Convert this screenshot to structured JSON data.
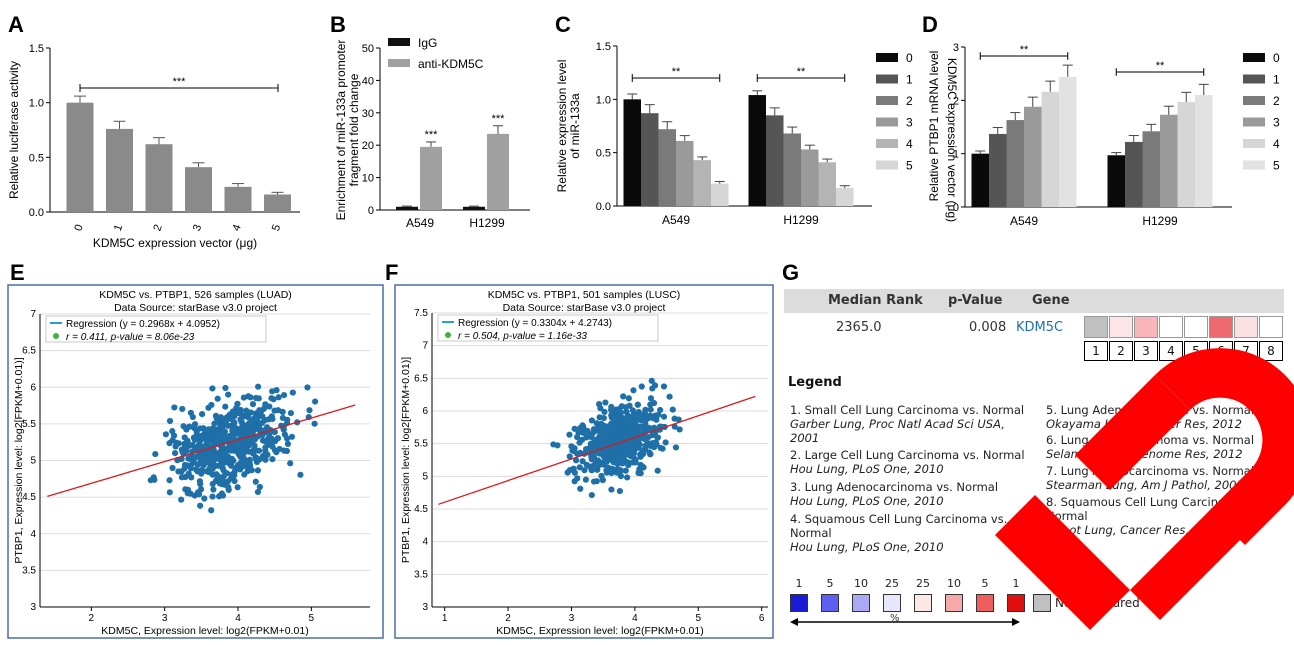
{
  "panel_letters": {
    "A": "A",
    "B": "B",
    "C": "C",
    "D": "D",
    "E": "E",
    "F": "F",
    "G": "G"
  },
  "chart_data": [
    {
      "panel": "A",
      "type": "bar",
      "ylabel": "Relative luciferase activity",
      "xlabel": "KDM5C expression vector (μg)",
      "categories": [
        "0",
        "1",
        "2",
        "3",
        "4",
        "5"
      ],
      "values": [
        1.0,
        0.76,
        0.62,
        0.41,
        0.23,
        0.16
      ],
      "errors": [
        0.06,
        0.07,
        0.06,
        0.04,
        0.03,
        0.02
      ],
      "ylim": [
        0,
        1.5
      ],
      "yticks": [
        "0.0",
        "0.5",
        "1.0",
        "1.5"
      ],
      "significance": "***",
      "color": "#8a8a8a"
    },
    {
      "panel": "B",
      "type": "bar",
      "ylabel": [
        "Enrichment of miR-133a promoter",
        "fragment fold change"
      ],
      "categories": [
        "A549",
        "H1299"
      ],
      "series": [
        {
          "name": "IgG",
          "values": [
            1.0,
            1.0
          ],
          "errors": [
            0.2,
            0.2
          ],
          "color": "#111111"
        },
        {
          "name": "anti-KDM5C",
          "values": [
            19.5,
            23.5
          ],
          "errors": [
            1.5,
            2.5
          ],
          "color": "#a0a0a0"
        }
      ],
      "ylim": [
        0,
        50
      ],
      "yticks": [
        "0",
        "10",
        "20",
        "30",
        "40",
        "50"
      ],
      "significance": [
        "***",
        "***"
      ]
    },
    {
      "panel": "C",
      "type": "bar",
      "ylabel": [
        "Relative expression level",
        "of miR-133a"
      ],
      "legend_title": "KDM5C expression vector (μg)",
      "categories": [
        "A549",
        "H1299"
      ],
      "series": [
        {
          "name": "0",
          "values": [
            1.0,
            1.04
          ],
          "errors": [
            0.05,
            0.04
          ],
          "color": "#0a0a0a"
        },
        {
          "name": "1",
          "values": [
            0.87,
            0.85
          ],
          "errors": [
            0.08,
            0.07
          ],
          "color": "#555555"
        },
        {
          "name": "2",
          "values": [
            0.72,
            0.68
          ],
          "errors": [
            0.07,
            0.06
          ],
          "color": "#7a7a7a"
        },
        {
          "name": "3",
          "values": [
            0.61,
            0.53
          ],
          "errors": [
            0.05,
            0.04
          ],
          "color": "#9a9a9a"
        },
        {
          "name": "4",
          "values": [
            0.43,
            0.41
          ],
          "errors": [
            0.03,
            0.03
          ],
          "color": "#b4b4b4"
        },
        {
          "name": "5",
          "values": [
            0.21,
            0.17
          ],
          "errors": [
            0.02,
            0.02
          ],
          "color": "#d6d6d6"
        }
      ],
      "ylim": [
        0,
        1.5
      ],
      "yticks": [
        "0.0",
        "0.5",
        "1.0",
        "1.5"
      ],
      "significance": [
        "**",
        "**"
      ]
    },
    {
      "panel": "D",
      "type": "bar",
      "ylabel": "Relative PTBP1 mRNA level",
      "legend_title": "KDM5C expression vector (μg)",
      "categories": [
        "A549",
        "H1299"
      ],
      "series": [
        {
          "name": "0",
          "values": [
            1.0,
            0.97
          ],
          "errors": [
            0.05,
            0.05
          ],
          "color": "#0a0a0a"
        },
        {
          "name": "1",
          "values": [
            1.37,
            1.22
          ],
          "errors": [
            0.12,
            0.12
          ],
          "color": "#555555"
        },
        {
          "name": "2",
          "values": [
            1.63,
            1.42
          ],
          "errors": [
            0.14,
            0.13
          ],
          "color": "#7a7a7a"
        },
        {
          "name": "3",
          "values": [
            1.88,
            1.73
          ],
          "errors": [
            0.18,
            0.16
          ],
          "color": "#9a9a9a"
        },
        {
          "name": "4",
          "values": [
            2.16,
            1.97
          ],
          "errors": [
            0.2,
            0.18
          ],
          "color": "#d6d6d6"
        },
        {
          "name": "5",
          "values": [
            2.44,
            2.1
          ],
          "errors": [
            0.22,
            0.2
          ],
          "color": "#e2e2e2"
        }
      ],
      "ylim": [
        0,
        3
      ],
      "yticks": [
        "0",
        "1",
        "2",
        "3"
      ],
      "significance": [
        "**",
        "**"
      ]
    },
    {
      "panel": "E",
      "type": "scatter",
      "title": "KDM5C vs. PTBP1, 526 samples (LUAD)",
      "subtitle": "Data Source: starBase v3.0 project",
      "regression": "Regression (y = 0.2968x + 4.0952)",
      "stats": "r = 0.411, p-value = 8.06e-23",
      "slope": 0.2968,
      "intercept": 4.0952,
      "xlabel": "KDM5C, Expression level: log2(FPKM+0.01)",
      "ylabel": "PTBP1, Expression level: log2[FPKM+0.01)]",
      "xlim": [
        1.3,
        5.8
      ],
      "ylim": [
        3.0,
        7.0
      ],
      "xticks": [
        "2",
        "3",
        "4",
        "5"
      ],
      "yticks": [
        "3",
        "3.5",
        "4",
        "4.5",
        "5",
        "5.5",
        "6",
        "6.5",
        "7"
      ],
      "n_points": 526
    },
    {
      "panel": "F",
      "type": "scatter",
      "title": "KDM5C vs. PTBP1, 501 samples (LUSC)",
      "subtitle": "Data Source: starBase v3.0 project",
      "regression": "Regression (y = 0.3304x + 4.2743)",
      "stats": "r = 0.504, p-value = 1.16e-33",
      "slope": 0.3304,
      "intercept": 4.2743,
      "xlabel": "KDM5C, Expression level: log2(FPKM+0.01)",
      "ylabel": "PTBP1, Expression level: log2[FPKM+0.01)]",
      "xlim": [
        0.8,
        6.1
      ],
      "ylim": [
        3.0,
        7.5
      ],
      "xticks": [
        "1",
        "2",
        "3",
        "4",
        "5",
        "6"
      ],
      "yticks": [
        "3",
        "3.5",
        "4",
        "4.5",
        "5",
        "5.5",
        "6",
        "6.5",
        "7",
        "7.5"
      ],
      "n_points": 501
    }
  ],
  "oncomine": {
    "headers": {
      "rank": "Median Rank",
      "pvalue": "p-Value",
      "gene": "Gene"
    },
    "row": {
      "rank": "2365.0",
      "pvalue": "0.008",
      "gene": "KDM5C"
    },
    "cells": [
      "#c0c0c0",
      "#fde5e7",
      "#f8b5ba",
      "#ffffff",
      "#ffffff",
      "#ee6a70",
      "#fbe0e2",
      "#ffffff"
    ],
    "cell_numbers": [
      "1",
      "2",
      "3",
      "4",
      "5",
      "6",
      "7",
      "8"
    ],
    "legend_title": "Legend",
    "legend_left": [
      {
        "line1": "1. Small Cell Lung Carcinoma vs. Normal",
        "line2": "Garber Lung, Proc Natl Acad Sci USA,",
        "line3": "2001"
      },
      {
        "line1": "2. Large Cell Lung Carcinoma vs. Normal",
        "line2": "Hou Lung, PLoS One, 2010",
        "line3": ""
      },
      {
        "line1": "3. Lung Adenocarcinoma vs. Normal",
        "line2": "Hou Lung, PLoS One, 2010",
        "line3": ""
      },
      {
        "line1": "4. Squamous Cell Lung Carcinoma vs.",
        "line2": "Normal",
        "line3": "Hou Lung, PLoS One, 2010"
      }
    ],
    "legend_right": [
      {
        "line1": "5. Lung Adenocarcinoma vs. Normal",
        "line2": "Okayama Lung, Cancer Res, 2012",
        "line3": ""
      },
      {
        "line1": "6. Lung Adenocarcinoma vs. Normal",
        "line2": "Selamat Lung, Genome Res, 2012",
        "line3": ""
      },
      {
        "line1": "7. Lung Adenocarcinoma vs. Normal",
        "line2": "Stearman Lung, Am J Pathol, 2005",
        "line3": ""
      },
      {
        "line1": "8. Squamous Cell Lung Carcinoma vs.",
        "line2": "Normal",
        "line3": "Talbot Lung, Cancer Res, 2005"
      }
    ],
    "scale_labels": [
      "1",
      "5",
      "10",
      "25",
      "25",
      "10",
      "5",
      "1"
    ],
    "scale_colors": [
      "#1a1ad6",
      "#5e5ef0",
      "#a9a9f6",
      "#e6e6fd",
      "#fde6e6",
      "#f6a9a9",
      "#ef5e5e",
      "#e01010"
    ],
    "not_measured": "Not measured",
    "percent": "%"
  }
}
